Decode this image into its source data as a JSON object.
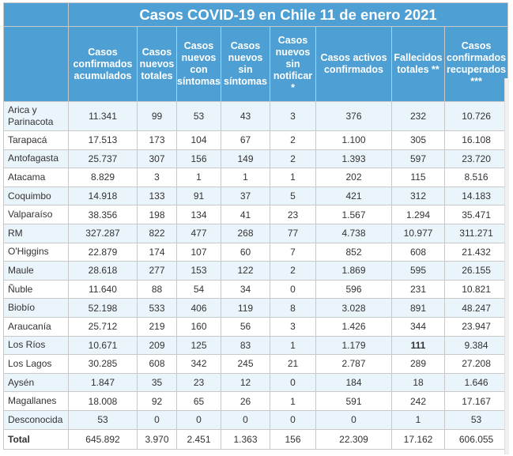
{
  "title": "Casos COVID-19 en Chile 11 de enero 2021",
  "headers": [
    "Casos confirmados acumulados",
    "Casos nuevos totales",
    "Casos nuevos con síntomas",
    "Casos nuevos sin síntomas",
    "Casos nuevos sin notificar *",
    "Casos activos confirmados",
    "Fallecidos totales **",
    "Casos confirmados recuperados ***"
  ],
  "rows": [
    {
      "region": "Arica y Parinacota",
      "values": [
        "11.341",
        "99",
        "53",
        "43",
        "3",
        "376",
        "232",
        "10.726"
      ]
    },
    {
      "region": "Tarapacá",
      "values": [
        "17.513",
        "173",
        "104",
        "67",
        "2",
        "1.100",
        "305",
        "16.108"
      ]
    },
    {
      "region": "Antofagasta",
      "values": [
        "25.737",
        "307",
        "156",
        "149",
        "2",
        "1.393",
        "597",
        "23.720"
      ]
    },
    {
      "region": "Atacama",
      "values": [
        "8.829",
        "3",
        "1",
        "1",
        "1",
        "202",
        "115",
        "8.516"
      ]
    },
    {
      "region": "Coquimbo",
      "values": [
        "14.918",
        "133",
        "91",
        "37",
        "5",
        "421",
        "312",
        "14.183"
      ]
    },
    {
      "region": "Valparaíso",
      "values": [
        "38.356",
        "198",
        "134",
        "41",
        "23",
        "1.567",
        "1.294",
        "35.471"
      ]
    },
    {
      "region": "RM",
      "values": [
        "327.287",
        "822",
        "477",
        "268",
        "77",
        "4.738",
        "10.977",
        "311.271"
      ]
    },
    {
      "region": "O'Higgins",
      "values": [
        "22.879",
        "174",
        "107",
        "60",
        "7",
        "852",
        "608",
        "21.432"
      ]
    },
    {
      "region": "Maule",
      "values": [
        "28.618",
        "277",
        "153",
        "122",
        "2",
        "1.869",
        "595",
        "26.155"
      ]
    },
    {
      "region": "Ñuble",
      "values": [
        "11.640",
        "88",
        "54",
        "34",
        "0",
        "596",
        "231",
        "10.821"
      ]
    },
    {
      "region": "Biobío",
      "values": [
        "52.198",
        "533",
        "406",
        "119",
        "8",
        "3.028",
        "891",
        "48.247"
      ]
    },
    {
      "region": "Araucanía",
      "values": [
        "25.712",
        "219",
        "160",
        "56",
        "3",
        "1.426",
        "344",
        "23.947"
      ]
    },
    {
      "region": "Los Ríos",
      "values": [
        "10.671",
        "209",
        "125",
        "83",
        "1",
        "1.179",
        "111",
        "9.384"
      ]
    },
    {
      "region": "Los Lagos",
      "values": [
        "30.285",
        "608",
        "342",
        "245",
        "21",
        "2.787",
        "289",
        "27.208"
      ]
    },
    {
      "region": "Aysén",
      "values": [
        "1.847",
        "35",
        "23",
        "12",
        "0",
        "184",
        "18",
        "1.646"
      ]
    },
    {
      "region": "Magallanes",
      "values": [
        "18.008",
        "92",
        "65",
        "26",
        "1",
        "591",
        "242",
        "17.167"
      ]
    },
    {
      "region": "Desconocida",
      "values": [
        "53",
        "0",
        "0",
        "0",
        "0",
        "0",
        "1",
        "53"
      ]
    }
  ],
  "total": {
    "label": "Total",
    "values": [
      "645.892",
      "3.970",
      "2.451",
      "1.363",
      "156",
      "22.309",
      "17.162",
      "606.055"
    ]
  }
}
